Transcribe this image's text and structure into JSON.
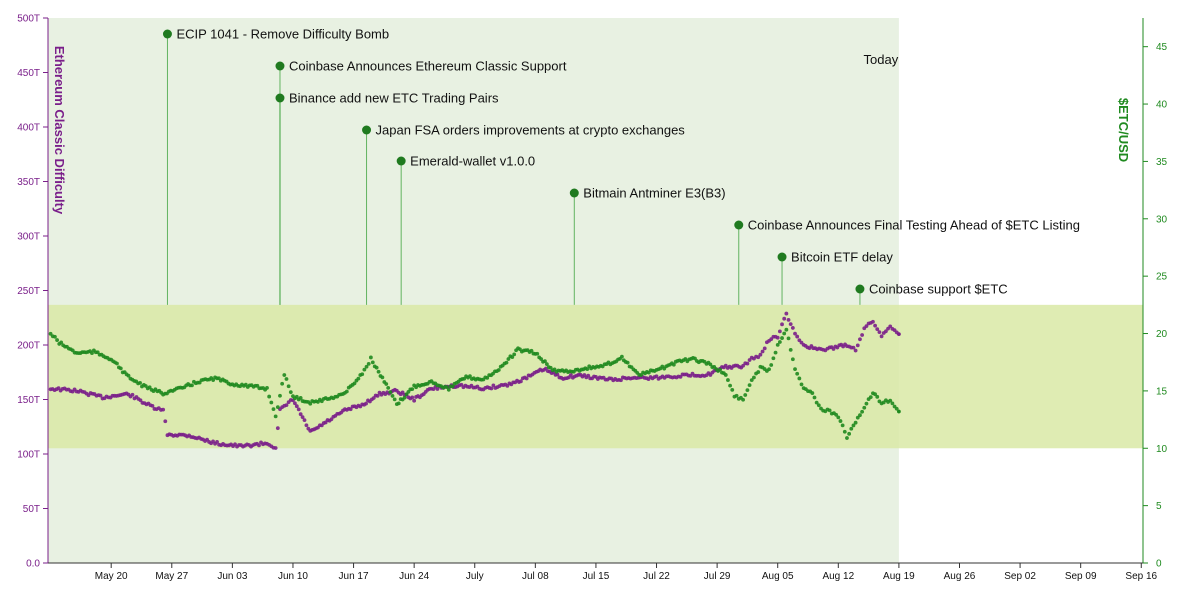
{
  "chart_data": {
    "type": "line",
    "title": "",
    "left_axis": {
      "label": "Ethereum Classic Difficulty",
      "color": "#7a1f8a",
      "ticks": [
        "0.0",
        "50T",
        "100T",
        "150T",
        "200T",
        "250T",
        "300T",
        "350T",
        "400T",
        "450T",
        "500T"
      ],
      "range": [
        0,
        500
      ]
    },
    "right_axis": {
      "label": "$ETC/USD",
      "color": "#1f8a1f",
      "ticks": [
        "0",
        "5",
        "10",
        "15",
        "20",
        "25",
        "30",
        "35",
        "40",
        "45"
      ],
      "range": [
        0,
        47.5
      ]
    },
    "x_axis": {
      "ticks": [
        "May 20",
        "May 27",
        "Jun 03",
        "Jun 10",
        "Jun 17",
        "Jun 24",
        "July",
        "Jul 08",
        "Jul 15",
        "Jul 22",
        "Jul 29",
        "Aug 05",
        "Aug 12",
        "Aug 19",
        "Aug 26",
        "Sep 02",
        "Sep 09",
        "Sep 16"
      ],
      "range_days": [
        -4.3,
        122.2
      ],
      "tick_days": [
        3,
        10,
        17,
        24,
        31,
        38,
        45,
        52,
        59,
        66,
        73,
        80,
        87,
        94,
        101,
        108,
        115,
        122
      ]
    },
    "today": {
      "label": "Today",
      "day": 94
    },
    "band": {
      "low": 10,
      "high": 22.5,
      "unit": "$ETC/USD"
    },
    "events": [
      {
        "label": "ECIP 1041 - Remove Difficulty Bomb",
        "day": 9.5
      },
      {
        "label": "Coinbase Announces Ethereum Classic Support",
        "day": 22.5
      },
      {
        "label": "Binance add new ETC Trading Pairs",
        "day": 22.5
      },
      {
        "label": "Japan FSA orders improvements at crypto exchanges",
        "day": 32.5
      },
      {
        "label": "Emerald-wallet v1.0.0",
        "day": 36.5
      },
      {
        "label": "Bitmain Antminer E3(B3)",
        "day": 56.5
      },
      {
        "label": "Coinbase Announces Final Testing Ahead of $ETC Listing",
        "day": 75.5
      },
      {
        "label": "Bitcoin ETF delay",
        "day": 80.5
      },
      {
        "label": "Coinbase support $ETC",
        "day": 89.5
      }
    ],
    "series": [
      {
        "name": "Ethereum Classic Difficulty",
        "axis": "left",
        "color": "#7a1f8a",
        "points": [
          [
            -4,
            160
          ],
          [
            -1,
            158
          ],
          [
            2,
            152
          ],
          [
            5,
            155
          ],
          [
            8,
            142
          ],
          [
            9,
            140
          ],
          [
            9.5,
            118
          ],
          [
            12,
            117
          ],
          [
            15,
            110
          ],
          [
            18,
            107
          ],
          [
            21,
            110
          ],
          [
            22,
            106
          ],
          [
            22.5,
            140
          ],
          [
            24,
            150
          ],
          [
            26,
            120
          ],
          [
            28,
            130
          ],
          [
            30,
            140
          ],
          [
            32,
            145
          ],
          [
            34,
            155
          ],
          [
            36,
            158
          ],
          [
            38,
            150
          ],
          [
            40,
            160
          ],
          [
            43,
            163
          ],
          [
            46,
            160
          ],
          [
            49,
            164
          ],
          [
            51,
            170
          ],
          [
            53,
            178
          ],
          [
            55,
            170
          ],
          [
            57,
            172
          ],
          [
            59,
            170
          ],
          [
            61,
            168
          ],
          [
            63,
            170
          ],
          [
            66,
            170
          ],
          [
            69,
            172
          ],
          [
            72,
            173
          ],
          [
            74,
            180
          ],
          [
            76,
            180
          ],
          [
            77,
            188
          ],
          [
            78,
            190
          ],
          [
            79,
            205
          ],
          [
            80,
            208
          ],
          [
            81,
            228
          ],
          [
            82,
            210
          ],
          [
            83,
            200
          ],
          [
            85,
            195
          ],
          [
            86,
            197
          ],
          [
            88,
            200
          ],
          [
            89,
            196
          ],
          [
            90,
            215
          ],
          [
            91,
            222
          ],
          [
            92,
            208
          ],
          [
            93,
            218
          ],
          [
            94,
            210
          ]
        ]
      },
      {
        "name": "$ETC/USD",
        "axis": "right",
        "color": "#1f8a1f",
        "points": [
          [
            -4,
            20
          ],
          [
            -3,
            19.2
          ],
          [
            -1,
            18.3
          ],
          [
            1,
            18.4
          ],
          [
            3,
            17.8
          ],
          [
            5,
            16.2
          ],
          [
            7,
            15.3
          ],
          [
            9,
            14.8
          ],
          [
            11,
            15.2
          ],
          [
            13,
            15.8
          ],
          [
            15,
            16.1
          ],
          [
            17,
            15.6
          ],
          [
            19,
            15.4
          ],
          [
            21,
            15.2
          ],
          [
            22,
            12.8
          ],
          [
            23,
            16.4
          ],
          [
            24,
            14.5
          ],
          [
            26,
            14.0
          ],
          [
            28,
            14.3
          ],
          [
            30,
            14.8
          ],
          [
            32,
            16.5
          ],
          [
            33,
            17.8
          ],
          [
            35,
            15.2
          ],
          [
            36,
            13.8
          ],
          [
            38,
            15.4
          ],
          [
            40,
            15.8
          ],
          [
            42,
            15.2
          ],
          [
            44,
            16.2
          ],
          [
            46,
            16.0
          ],
          [
            48,
            17.0
          ],
          [
            50,
            18.6
          ],
          [
            52,
            18.3
          ],
          [
            54,
            16.8
          ],
          [
            56,
            16.7
          ],
          [
            58,
            17.0
          ],
          [
            60,
            17.2
          ],
          [
            62,
            17.9
          ],
          [
            64,
            16.4
          ],
          [
            66,
            16.8
          ],
          [
            68,
            17.4
          ],
          [
            70,
            17.8
          ],
          [
            72,
            17.4
          ],
          [
            74,
            16.4
          ],
          [
            75,
            14.6
          ],
          [
            76,
            14.2
          ],
          [
            77,
            16.0
          ],
          [
            78,
            17.0
          ],
          [
            79,
            16.8
          ],
          [
            80,
            19.0
          ],
          [
            81,
            20.4
          ],
          [
            82,
            17.0
          ],
          [
            83,
            15.2
          ],
          [
            84,
            14.8
          ],
          [
            85,
            13.4
          ],
          [
            86,
            13.2
          ],
          [
            87,
            12.8
          ],
          [
            88,
            11.0
          ],
          [
            89,
            12.2
          ],
          [
            90,
            13.6
          ],
          [
            91,
            14.8
          ],
          [
            92,
            14.0
          ],
          [
            93,
            14.2
          ],
          [
            94,
            13.2
          ]
        ]
      }
    ]
  }
}
